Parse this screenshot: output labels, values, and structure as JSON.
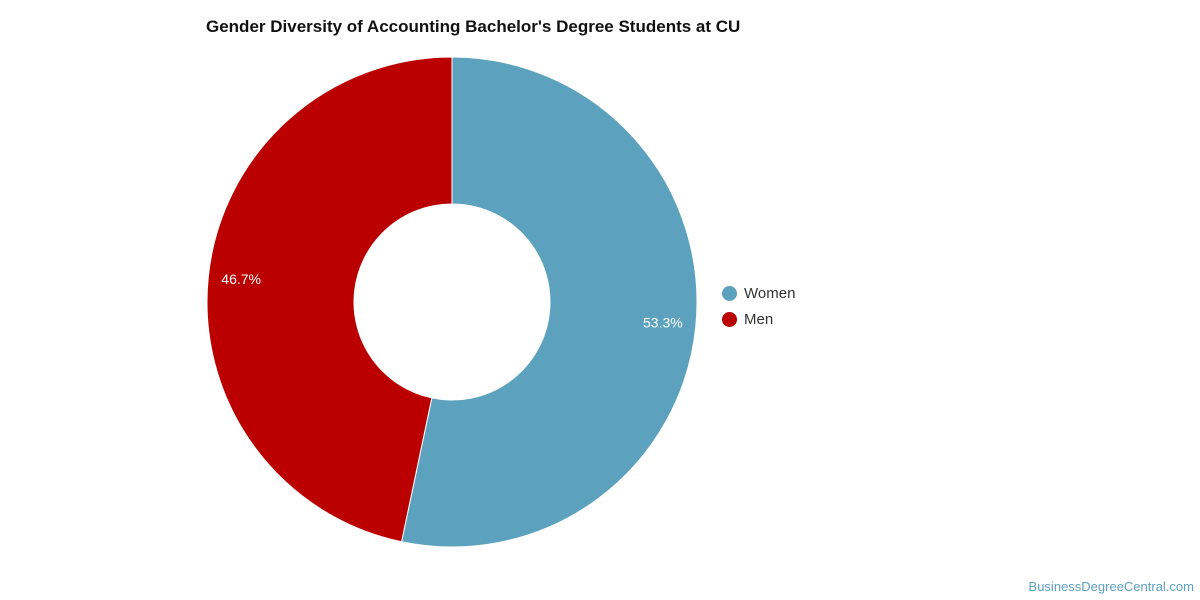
{
  "chart_data": {
    "type": "pie",
    "title": "Gender Diversity of Accounting Bachelor's Degree Students at CU",
    "categories": [
      "Women",
      "Men"
    ],
    "values": [
      53.3,
      46.7
    ],
    "value_labels": [
      "53.3%",
      "46.7%"
    ],
    "colors": [
      "#5ca1be",
      "#bb0000"
    ],
    "donut": true,
    "legend_position": "right"
  },
  "legend": {
    "items": [
      {
        "label": "Women",
        "color": "#5ca1be"
      },
      {
        "label": "Men",
        "color": "#bb0000"
      }
    ]
  },
  "watermark": "BusinessDegreeCentral.com"
}
